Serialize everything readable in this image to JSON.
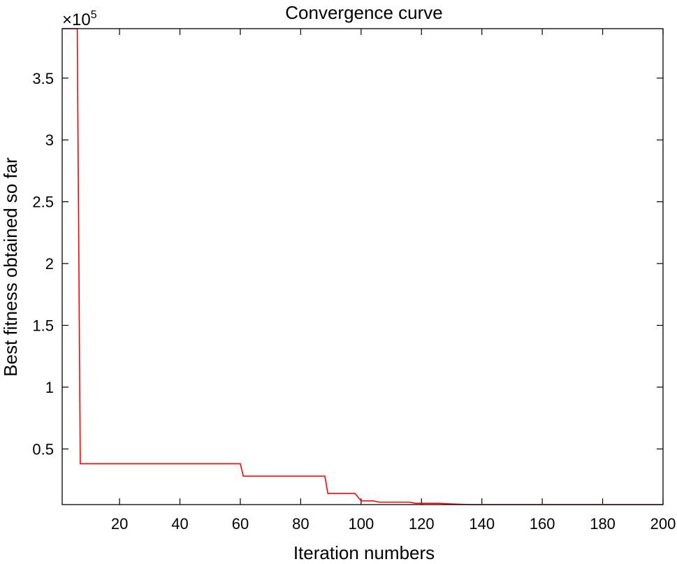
{
  "chart_data": {
    "type": "line",
    "title": "Convergence curve",
    "xlabel": "Iteration numbers",
    "ylabel": "Best fitness obtained so far",
    "y_multiplier_prefix": "×10",
    "y_multiplier_exponent": "5",
    "xlim": [
      1,
      200
    ],
    "ylim": [
      0.05,
      3.9
    ],
    "x_ticks": [
      20,
      40,
      60,
      80,
      100,
      120,
      140,
      160,
      180,
      200
    ],
    "x_tick_labels": [
      "20",
      "40",
      "60",
      "80",
      "100",
      "120",
      "140",
      "160",
      "180",
      "200"
    ],
    "y_ticks": [
      0.5,
      1,
      1.5,
      2,
      2.5,
      3,
      3.5
    ],
    "y_tick_labels": [
      "0.5",
      "1",
      "1.5",
      "2",
      "2.5",
      "3",
      "3.5"
    ],
    "grid": false,
    "series": [
      {
        "color": "#ff0000",
        "x": [
          1,
          6,
          7,
          60,
          61,
          88,
          89,
          98,
          100,
          104,
          106,
          108,
          116,
          118,
          126,
          130,
          136,
          200
        ],
        "y": [
          3.9,
          3.9,
          0.38,
          0.38,
          0.28,
          0.28,
          0.14,
          0.14,
          0.08,
          0.08,
          0.07,
          0.07,
          0.07,
          0.06,
          0.06,
          0.055,
          0.05,
          0.05
        ]
      }
    ]
  }
}
